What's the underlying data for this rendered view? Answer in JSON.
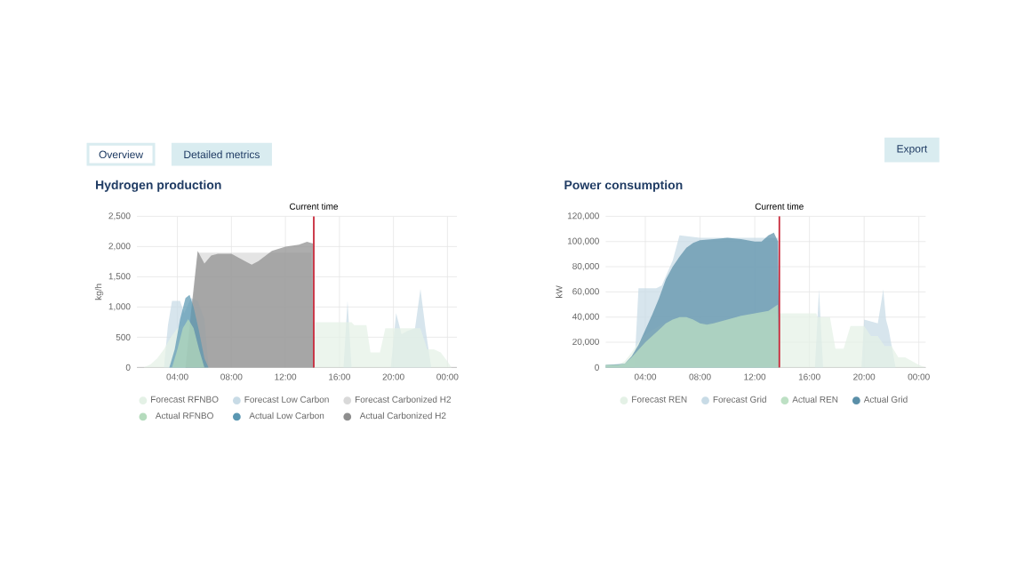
{
  "chart_data": [
    {
      "type": "area",
      "title": "Hydrogen production",
      "ylabel": "kg/h",
      "annotations": [
        "Overview",
        "Detailed metrics"
      ],
      "xlim": [
        1,
        24.7
      ],
      "xticks": [
        {
          "value": 4,
          "label": "04:00"
        },
        {
          "value": 8,
          "label": "08:00"
        },
        {
          "value": 12,
          "label": "12:00"
        },
        {
          "value": 16,
          "label": "16:00"
        },
        {
          "value": 20,
          "label": "20:00"
        },
        {
          "value": 24,
          "label": "00:00"
        }
      ],
      "ylim": [
        0,
        2500
      ],
      "yticks": [
        0,
        500,
        {
          "value": 1000,
          "label": "1,000"
        },
        {
          "value": 1500,
          "label": "1,500"
        },
        {
          "value": 2000,
          "label": "2,000"
        },
        {
          "value": 2500,
          "label": "2,500"
        }
      ],
      "grid": true,
      "legend": "bottom",
      "ref_lines": [
        {
          "axis": "x",
          "value": 14.1,
          "label": "Current time",
          "color": "#c8283a"
        }
      ],
      "series": [
        {
          "name": "Forecast RFNBO",
          "color": "#e4f1e6",
          "x": [
            1.5,
            2,
            2.5,
            3,
            3.5,
            4,
            4.5,
            5,
            5.5,
            6,
            6.3,
            14.1,
            14.2,
            16,
            16.9,
            17.1,
            18,
            18.3,
            19,
            19.4,
            20,
            21,
            22,
            22.5,
            23,
            23.5,
            24,
            24.3
          ],
          "values": [
            0,
            50,
            150,
            300,
            500,
            650,
            700,
            650,
            400,
            100,
            0,
            0,
            750,
            750,
            750,
            700,
            700,
            250,
            250,
            650,
            650,
            650,
            650,
            300,
            300,
            250,
            100,
            0
          ]
        },
        {
          "name": "Forecast Low Carbon",
          "color": "#c8dbe6",
          "x": [
            3,
            3.3,
            3.6,
            4.2,
            4.5,
            5,
            5.5,
            6,
            6.3,
            16.3,
            16.6,
            16.9,
            19.8,
            20.2,
            20.6,
            21,
            21.6,
            22,
            22.4,
            22.8
          ],
          "values": [
            0,
            700,
            1100,
            1100,
            900,
            1150,
            1100,
            800,
            0,
            0,
            1100,
            0,
            0,
            900,
            550,
            600,
            650,
            1300,
            600,
            0
          ]
        },
        {
          "name": "Forecast Carbonized H2",
          "color": "#d9d9d9",
          "x": [
            4.7,
            5.5,
            6,
            13.9,
            14.1
          ],
          "values": [
            0,
            1900,
            1900,
            1900,
            0
          ]
        },
        {
          "name": "Actual RFNBO",
          "color": "#b5dbbd",
          "x": [
            3.6,
            4,
            4.4,
            4.8,
            5.2,
            5.6,
            6
          ],
          "values": [
            0,
            300,
            650,
            800,
            650,
            300,
            0
          ]
        },
        {
          "name": "Actual Low Carbon",
          "color": "#5a97b2",
          "x": [
            3.4,
            3.8,
            4.2,
            4.6,
            4.9,
            5.2,
            5.6,
            6,
            6.3
          ],
          "values": [
            0,
            300,
            800,
            1150,
            1200,
            1000,
            600,
            150,
            0
          ]
        },
        {
          "name": "Actual Carbonized H2",
          "color": "#8e8e8e",
          "x": [
            4.6,
            5,
            5.5,
            6,
            6.5,
            7,
            8,
            9,
            9.5,
            10,
            11,
            12,
            13,
            13.6,
            14.05,
            14.1
          ],
          "values": [
            0,
            900,
            1930,
            1720,
            1850,
            1880,
            1880,
            1760,
            1700,
            1760,
            1930,
            2000,
            2030,
            2080,
            2050,
            0
          ]
        }
      ]
    },
    {
      "type": "area",
      "title": "Power consumption",
      "ylabel": "kW",
      "annotations": [
        "Export"
      ],
      "xlim": [
        1.1,
        24.5
      ],
      "xticks": [
        {
          "value": 4,
          "label": "04:00"
        },
        {
          "value": 8,
          "label": "08:00"
        },
        {
          "value": 12,
          "label": "12:00"
        },
        {
          "value": 16,
          "label": "16:00"
        },
        {
          "value": 20,
          "label": "20:00"
        },
        {
          "value": 24,
          "label": "00:00"
        }
      ],
      "ylim": [
        0,
        120000
      ],
      "yticks": [
        0,
        {
          "value": 20000,
          "label": "20,000"
        },
        {
          "value": 40000,
          "label": "40,000"
        },
        {
          "value": 60000,
          "label": "60,000"
        },
        {
          "value": 80000,
          "label": "80,000"
        },
        {
          "value": 100000,
          "label": "100,000"
        },
        {
          "value": 120000,
          "label": "120,000"
        }
      ],
      "grid": true,
      "legend": "bottom",
      "ref_lines": [
        {
          "axis": "x",
          "value": 13.8,
          "label": "Current time",
          "color": "#c8283a"
        }
      ],
      "series": [
        {
          "name": "Forecast REN",
          "color": "#e4f1e6",
          "x": [
            1.1,
            2,
            2.5,
            3,
            3.5,
            4,
            5,
            6,
            7,
            8,
            9,
            10,
            11,
            12,
            13,
            13.8,
            14,
            16.5,
            16.6,
            17.5,
            17.9,
            18.5,
            19,
            20,
            20.5,
            21,
            21.5,
            22,
            22.5,
            23,
            23.5,
            24,
            24.5
          ],
          "values": [
            2000,
            2000,
            5000,
            12000,
            20000,
            26000,
            33000,
            38000,
            38000,
            35000,
            36000,
            38000,
            40000,
            42000,
            43000,
            43000,
            43000,
            43000,
            40000,
            40000,
            15000,
            15000,
            33000,
            33000,
            25000,
            25000,
            17000,
            17000,
            8000,
            8000,
            5000,
            2000,
            0
          ]
        },
        {
          "name": "Forecast Grid",
          "color": "#c8dbe6",
          "x": [
            3.2,
            3.5,
            4.8,
            5.2,
            6,
            6.5,
            8,
            10,
            12,
            12.5,
            13.7,
            13.8,
            16.4,
            16.7,
            17,
            19.8,
            20,
            21,
            21.4,
            21.6,
            21.8,
            22.3
          ],
          "values": [
            0,
            63000,
            63000,
            65000,
            85000,
            105000,
            103000,
            103000,
            103000,
            103000,
            103000,
            0,
            0,
            62000,
            0,
            0,
            38000,
            35000,
            62000,
            38000,
            30000,
            0
          ]
        },
        {
          "name": "Actual REN",
          "color": "#bde0c4",
          "x": [
            1.1,
            2,
            2.5,
            3,
            3.5,
            4,
            4.5,
            5,
            5.5,
            6,
            6.5,
            7,
            7.5,
            8,
            8.5,
            9,
            10,
            11,
            12,
            13,
            13.7,
            13.8
          ],
          "values": [
            2000,
            2000,
            3000,
            8000,
            14000,
            20000,
            25000,
            30000,
            35000,
            38000,
            40000,
            40000,
            38000,
            35000,
            34000,
            35000,
            38000,
            41000,
            43000,
            45000,
            50000,
            0
          ]
        },
        {
          "name": "Actual Grid",
          "color": "#5a8fa8",
          "x": [
            1.1,
            2.5,
            3,
            3.5,
            4,
            4.5,
            5,
            5.5,
            6,
            6.5,
            7,
            7.5,
            8,
            9,
            10,
            11,
            12,
            12.5,
            13,
            13.4,
            13.7,
            13.8
          ],
          "values": [
            2000,
            3000,
            9000,
            18000,
            30000,
            42000,
            55000,
            70000,
            80000,
            88000,
            95000,
            99000,
            101000,
            102000,
            103000,
            102000,
            100000,
            100000,
            105000,
            107000,
            100000,
            0
          ]
        }
      ]
    }
  ]
}
